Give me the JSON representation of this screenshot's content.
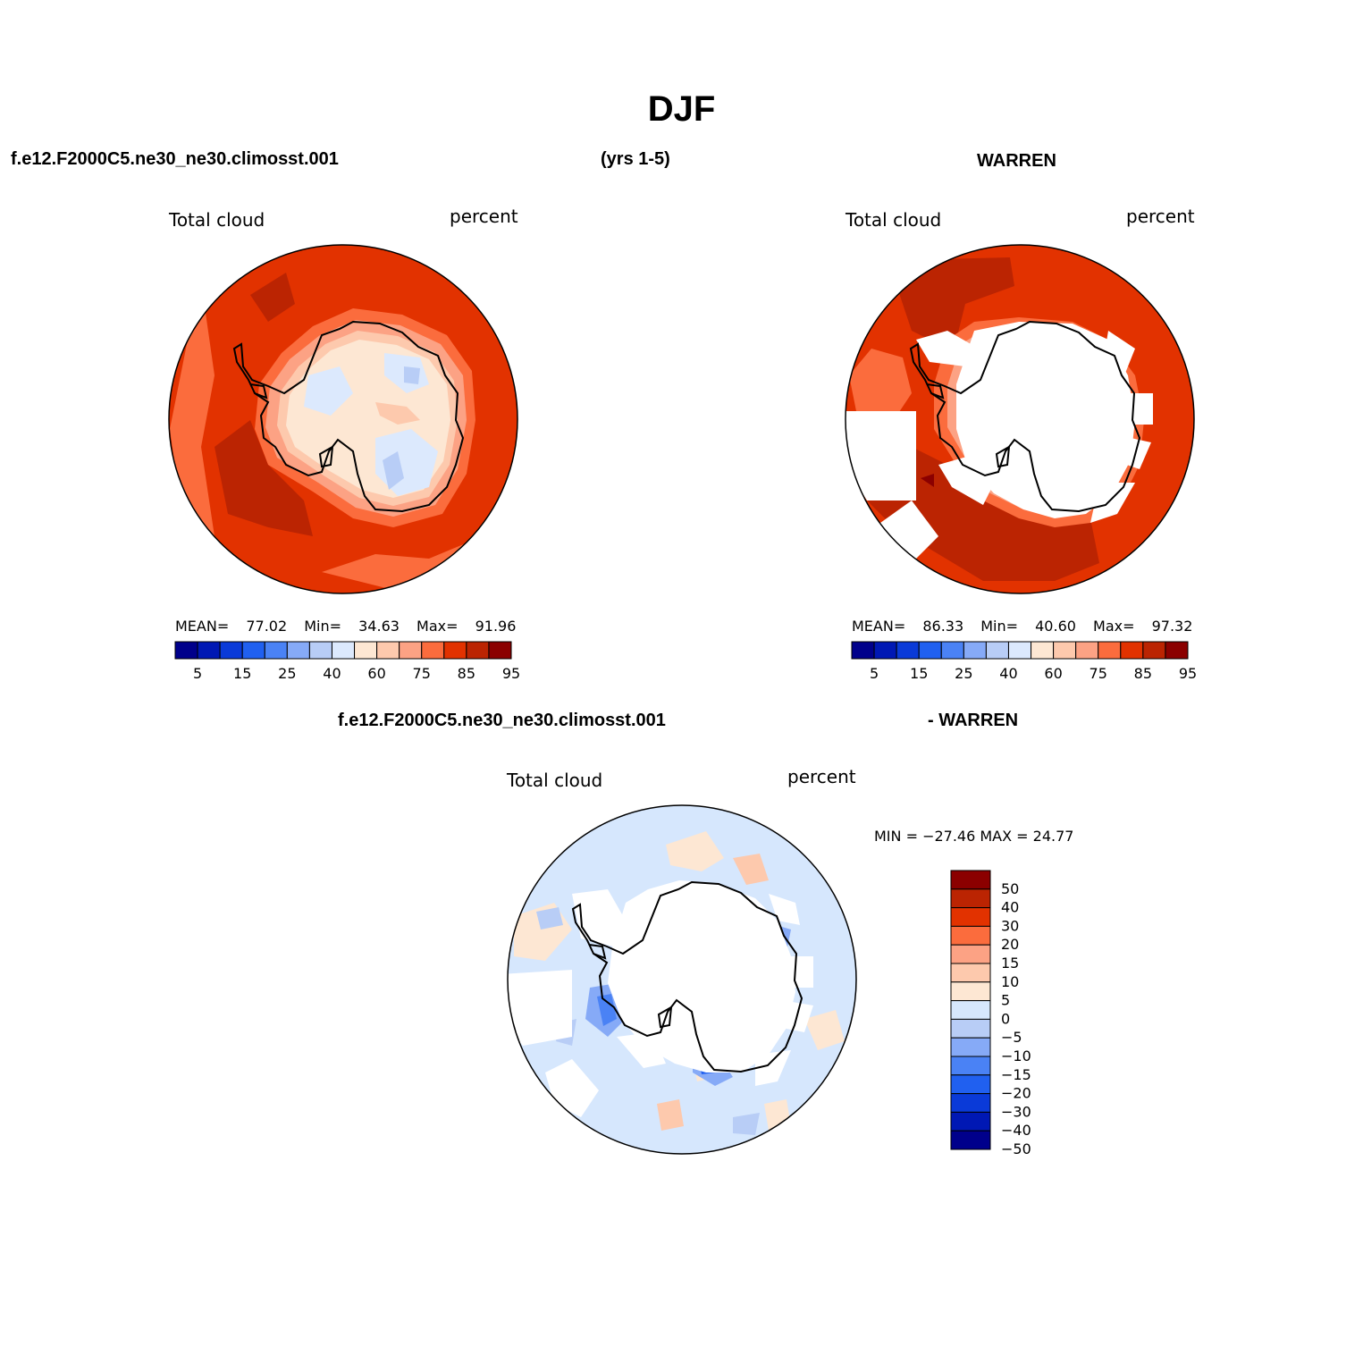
{
  "figure": {
    "title": "DJF",
    "panel1_case": "f.e12.F2000C5.ne30_ne30.climosst.001",
    "years": "(yrs 1-5)",
    "panel2_case": "WARREN",
    "diff_case_a": "f.e12.F2000C5.ne30_ne30.climosst.001",
    "diff_case_b": "- WARREN"
  },
  "colors": {
    "abs_scale": [
      "#00008b",
      "#0018b4",
      "#0a3ad8",
      "#2060f0",
      "#4a82f5",
      "#86aaf7",
      "#b8cdf6",
      "#dce9fd",
      "#fde7d3",
      "#fdc9ad",
      "#fca284",
      "#fb6c3d",
      "#e23200",
      "#bb2402",
      "#8b0000"
    ],
    "diff_scale": [
      "#00008b",
      "#0018b4",
      "#0a3ad8",
      "#2060f0",
      "#4a82f5",
      "#86aaf7",
      "#b8cdf6",
      "#d6e7fd",
      "#fde7d3",
      "#fdc9ad",
      "#fca284",
      "#fb6c3d",
      "#e23200",
      "#bb2402",
      "#8b0000"
    ]
  },
  "chart_data": [
    {
      "type": "heatmap",
      "panel": "model",
      "variable_label": "Total cloud",
      "units": "percent",
      "stats": {
        "mean_label": "MEAN=",
        "mean": "77.02",
        "min_label": "Min=",
        "min": "34.63",
        "max_label": "Max=",
        "max": "91.96"
      },
      "colorbar_ticks": [
        "5",
        "15",
        "25",
        "40",
        "60",
        "75",
        "85",
        "95"
      ]
    },
    {
      "type": "heatmap",
      "panel": "obs",
      "variable_label": "Total cloud",
      "units": "percent",
      "stats": {
        "mean_label": "MEAN=",
        "mean": "86.33",
        "min_label": "Min=",
        "min": "40.60",
        "max_label": "Max=",
        "max": "97.32"
      },
      "colorbar_ticks": [
        "5",
        "15",
        "25",
        "40",
        "60",
        "75",
        "85",
        "95"
      ]
    },
    {
      "type": "heatmap",
      "panel": "difference",
      "variable_label": "Total cloud",
      "units": "percent",
      "minmax_text": "MIN = −27.46 MAX =  24.77",
      "colorbar_ticks": [
        "50",
        "40",
        "30",
        "20",
        "15",
        "10",
        "5",
        "0",
        "−5",
        "−10",
        "−15",
        "−20",
        "−30",
        "−40",
        "−50"
      ]
    }
  ]
}
